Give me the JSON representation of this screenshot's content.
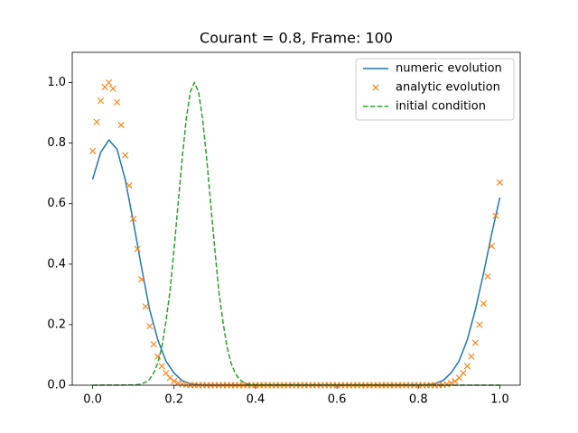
{
  "chart_data": {
    "type": "line",
    "title": "Courant = 0.8, Frame: 100",
    "xlim": [
      -0.05,
      1.05
    ],
    "ylim": [
      0,
      1.1
    ],
    "xticks": [
      {
        "value": 0,
        "label": "0.0"
      },
      0.2,
      0.4,
      0.6,
      0.8,
      {
        "value": 1,
        "label": "1.0"
      }
    ],
    "yticks": [
      {
        "value": 0,
        "label": "0.0"
      },
      0.2,
      0.4,
      0.6,
      0.8,
      {
        "value": 1,
        "label": "1.0"
      }
    ],
    "legend": "upper right",
    "series": [
      {
        "name": "numeric evolution",
        "color": "#1f77b4",
        "style": "solid",
        "x": [
          0,
          0.02,
          0.04,
          0.06,
          0.08,
          0.1,
          0.12,
          0.14,
          0.16,
          0.18,
          0.2,
          0.22,
          0.24,
          0.26,
          0.28,
          0.3,
          0.32,
          0.34,
          0.36,
          0.38,
          0.4,
          0.42,
          0.44,
          0.46,
          0.48,
          0.5,
          0.52,
          0.54,
          0.56,
          0.58,
          0.6,
          0.62,
          0.64,
          0.66,
          0.68,
          0.7,
          0.72,
          0.74,
          0.76,
          0.78,
          0.8,
          0.82,
          0.84,
          0.86,
          0.88,
          0.9,
          0.92,
          0.94,
          0.96,
          0.98,
          1
        ],
        "values": [
          0.68,
          0.77,
          0.81,
          0.78,
          0.68,
          0.54,
          0.39,
          0.25,
          0.15,
          0.08,
          0.04,
          0.015,
          0.005,
          0.001,
          0,
          0,
          0,
          0,
          0,
          0,
          0,
          0,
          0,
          0,
          0,
          0,
          0,
          0,
          0,
          0,
          0,
          0,
          0,
          0,
          0,
          0,
          0,
          0,
          0,
          0,
          0,
          0.001,
          0.005,
          0.015,
          0.04,
          0.08,
          0.15,
          0.25,
          0.37,
          0.5,
          0.62
        ]
      },
      {
        "name": "analytic evolution",
        "color": "#ff7f0e",
        "style": "marker",
        "x": [
          0,
          0.01,
          0.02,
          0.03,
          0.04,
          0.05,
          0.06,
          0.07,
          0.08,
          0.09,
          0.1,
          0.11,
          0.12,
          0.13,
          0.14,
          0.15,
          0.16,
          0.17,
          0.18,
          0.19,
          0.2,
          0.21,
          0.22,
          0.23,
          0.24,
          0.25,
          0.26,
          0.27,
          0.28,
          0.29,
          0.3,
          0.31,
          0.32,
          0.33,
          0.34,
          0.35,
          0.36,
          0.37,
          0.38,
          0.39,
          0.4,
          0.41,
          0.42,
          0.43,
          0.44,
          0.45,
          0.46,
          0.47,
          0.48,
          0.49,
          0.5,
          0.51,
          0.52,
          0.53,
          0.54,
          0.55,
          0.56,
          0.57,
          0.58,
          0.59,
          0.6,
          0.61,
          0.62,
          0.63,
          0.64,
          0.65,
          0.66,
          0.67,
          0.68,
          0.69,
          0.7,
          0.71,
          0.72,
          0.73,
          0.74,
          0.75,
          0.76,
          0.77,
          0.78,
          0.79,
          0.8,
          0.81,
          0.82,
          0.83,
          0.84,
          0.85,
          0.86,
          0.87,
          0.88,
          0.89,
          0.9,
          0.91,
          0.92,
          0.93,
          0.94,
          0.95,
          0.96,
          0.97,
          0.98,
          0.99,
          1
        ],
        "values": [
          0.774,
          0.87,
          0.94,
          0.985,
          1.0,
          0.98,
          0.935,
          0.86,
          0.76,
          0.66,
          0.55,
          0.45,
          0.35,
          0.26,
          0.195,
          0.135,
          0.095,
          0.063,
          0.04,
          0.024,
          0.013,
          0.007,
          0.003,
          0.001,
          0,
          0,
          0,
          0,
          0,
          0,
          0,
          0,
          0,
          0,
          0,
          0,
          0,
          0,
          0,
          0,
          0,
          0,
          0,
          0,
          0,
          0,
          0,
          0,
          0,
          0,
          0,
          0,
          0,
          0,
          0,
          0,
          0,
          0,
          0,
          0,
          0,
          0,
          0,
          0,
          0,
          0,
          0,
          0,
          0,
          0,
          0,
          0,
          0,
          0,
          0,
          0,
          0,
          0,
          0,
          0,
          0,
          0,
          0,
          0,
          0,
          0,
          0.001,
          0.003,
          0.007,
          0.013,
          0.024,
          0.04,
          0.063,
          0.095,
          0.14,
          0.2,
          0.27,
          0.36,
          0.46,
          0.56,
          0.67
        ]
      },
      {
        "name": "initial condition",
        "color": "#2ca02c",
        "style": "dashed",
        "x": [
          0,
          0.1,
          0.11,
          0.12,
          0.13,
          0.14,
          0.15,
          0.16,
          0.17,
          0.18,
          0.19,
          0.2,
          0.21,
          0.22,
          0.23,
          0.24,
          0.25,
          0.26,
          0.27,
          0.28,
          0.29,
          0.3,
          0.31,
          0.32,
          0.33,
          0.34,
          0.35,
          0.36,
          0.37,
          0.38,
          0.39,
          0.4,
          1
        ],
        "values": [
          0,
          0.0007,
          0.0018,
          0.004,
          0.0096,
          0.02,
          0.04,
          0.073,
          0.126,
          0.21,
          0.31,
          0.45,
          0.6,
          0.75,
          0.88,
          0.97,
          1,
          0.97,
          0.88,
          0.75,
          0.6,
          0.45,
          0.31,
          0.21,
          0.126,
          0.073,
          0.04,
          0.02,
          0.0096,
          0.004,
          0.0018,
          0.0007,
          0
        ]
      }
    ]
  }
}
